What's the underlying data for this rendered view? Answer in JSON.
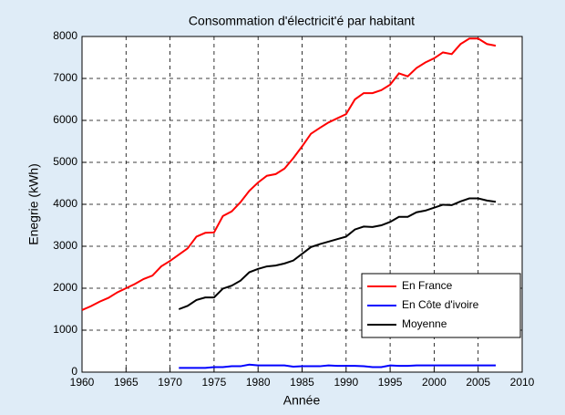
{
  "chart_data": {
    "type": "line",
    "title": "Consommation d'électricit'é par habitant",
    "x_label": "Année",
    "y_label": "Enegrie (kWh)",
    "x": [
      1960,
      1961,
      1962,
      1963,
      1964,
      1965,
      1966,
      1967,
      1968,
      1969,
      1970,
      1971,
      1972,
      1973,
      1974,
      1975,
      1976,
      1977,
      1978,
      1979,
      1980,
      1981,
      1982,
      1983,
      1984,
      1985,
      1986,
      1987,
      1988,
      1989,
      1990,
      1991,
      1992,
      1993,
      1994,
      1995,
      1996,
      1997,
      1998,
      1999,
      2000,
      2001,
      2002,
      2003,
      2004,
      2005,
      2006,
      2007
    ],
    "series": [
      {
        "name": "En France",
        "color": "#ff0000",
        "values": [
          1480,
          1570,
          1680,
          1770,
          1900,
          2000,
          2100,
          2220,
          2300,
          2520,
          2650,
          2800,
          2950,
          3230,
          3320,
          3330,
          3720,
          3830,
          4050,
          4320,
          4520,
          4680,
          4720,
          4850,
          5100,
          5380,
          5680,
          5820,
          5950,
          6050,
          6150,
          6500,
          6650,
          6650,
          6720,
          6850,
          7120,
          7050,
          7250,
          7380,
          7480,
          7620,
          7580,
          7820,
          7950,
          7950,
          7820,
          7780
        ]
      },
      {
        "name": "En Côte d'ivoire",
        "color": "#0000ff",
        "values": [
          null,
          null,
          null,
          null,
          null,
          null,
          null,
          null,
          null,
          null,
          null,
          100,
          100,
          100,
          100,
          120,
          120,
          140,
          140,
          180,
          160,
          160,
          160,
          160,
          130,
          140,
          140,
          140,
          160,
          150,
          150,
          150,
          140,
          120,
          120,
          160,
          150,
          150,
          160,
          160,
          160,
          160,
          160,
          160,
          160,
          160,
          160,
          160
        ]
      },
      {
        "name": "Moyenne",
        "color": "#000000",
        "values": [
          null,
          null,
          null,
          null,
          null,
          null,
          null,
          null,
          null,
          null,
          null,
          1500,
          1580,
          1720,
          1780,
          1780,
          1990,
          2060,
          2180,
          2380,
          2460,
          2520,
          2540,
          2590,
          2660,
          2820,
          2980,
          3050,
          3110,
          3170,
          3230,
          3400,
          3470,
          3460,
          3500,
          3580,
          3700,
          3700,
          3810,
          3850,
          3920,
          3990,
          3980,
          4070,
          4140,
          4140,
          4090,
          4060
        ]
      }
    ],
    "xlim": [
      1960,
      2010
    ],
    "xticks": [
      1960,
      1965,
      1970,
      1975,
      1980,
      1985,
      1990,
      1995,
      2000,
      2005,
      2010
    ],
    "ylim": [
      0,
      8000
    ],
    "yticks": [
      0,
      1000,
      2000,
      3000,
      4000,
      5000,
      6000,
      7000,
      8000
    ],
    "grid": true,
    "legend": "lower right"
  }
}
